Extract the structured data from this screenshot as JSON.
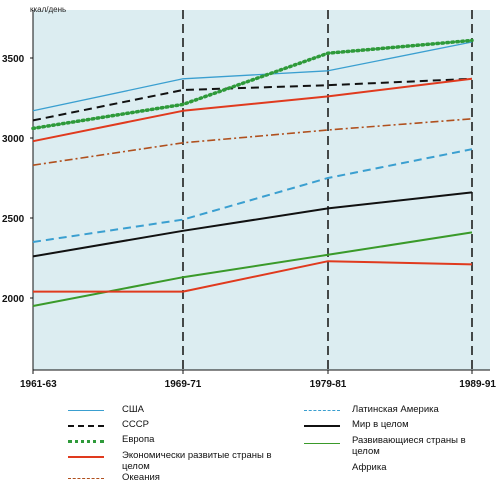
{
  "chart_data": {
    "type": "line",
    "ylabel": "ккал/день",
    "x": [
      "1961-63",
      "1969-71",
      "1979-81",
      "1989-91"
    ],
    "ylim": [
      1550,
      3800
    ],
    "yticks": [
      2000,
      2500,
      3000,
      3500
    ],
    "grid": false,
    "legend_position": "bottom",
    "series": [
      {
        "name": "США",
        "color": "#3a9fd0",
        "style": "solid",
        "values": [
          3170,
          3370,
          3420,
          3600
        ]
      },
      {
        "name": "СССР",
        "color": "#111111",
        "style": "dashed",
        "values": [
          3110,
          3300,
          3330,
          3370
        ]
      },
      {
        "name": "Европа",
        "color": "#2e9a3a",
        "style": "dotted",
        "values": [
          3060,
          3210,
          3530,
          3610
        ]
      },
      {
        "name": "Экономически развитые страны в целом",
        "color": "#e03a1e",
        "style": "solid",
        "values": [
          2980,
          3170,
          3260,
          3370
        ]
      },
      {
        "name": "Океания",
        "color": "#b0501e",
        "style": "dashdot",
        "values": [
          2830,
          2970,
          3050,
          3120
        ]
      },
      {
        "name": "Латинская Америка",
        "color": "#3a9fd0",
        "style": "dashed",
        "values": [
          2350,
          2490,
          2750,
          2930
        ]
      },
      {
        "name": "Мир в целом",
        "color": "#111111",
        "style": "solid",
        "values": [
          2260,
          2420,
          2560,
          2660
        ]
      },
      {
        "name": "Развивающиеся страны в целом",
        "color": "#3a9a2a",
        "style": "solid",
        "values": [
          1950,
          2130,
          2270,
          2410
        ]
      },
      {
        "name": "Африка",
        "color": "#e03a1e",
        "style": "solid",
        "values": [
          2040,
          2040,
          2230,
          2210
        ]
      }
    ]
  }
}
